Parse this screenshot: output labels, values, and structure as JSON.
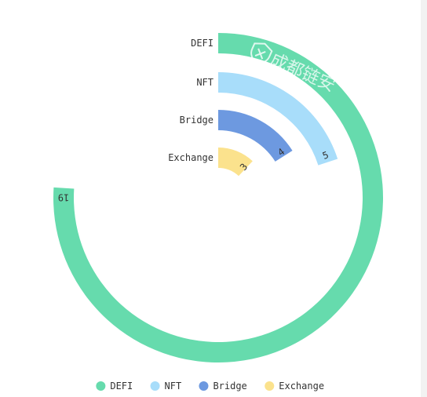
{
  "chart_data": {
    "type": "polar-bar",
    "categories": [
      "DEFI",
      "NFT",
      "Bridge",
      "Exchange"
    ],
    "values": [
      19,
      5,
      4,
      3
    ],
    "max": 25,
    "colors": [
      "#66dbad",
      "#a8ddfa",
      "#6d99e0",
      "#fbe28d"
    ],
    "legend": {
      "position": "bottom",
      "items": [
        "DEFI",
        "NFT",
        "Bridge",
        "Exchange"
      ]
    },
    "grid": false
  },
  "watermark": {
    "text": "成都链安",
    "icon": "shield-icon"
  }
}
